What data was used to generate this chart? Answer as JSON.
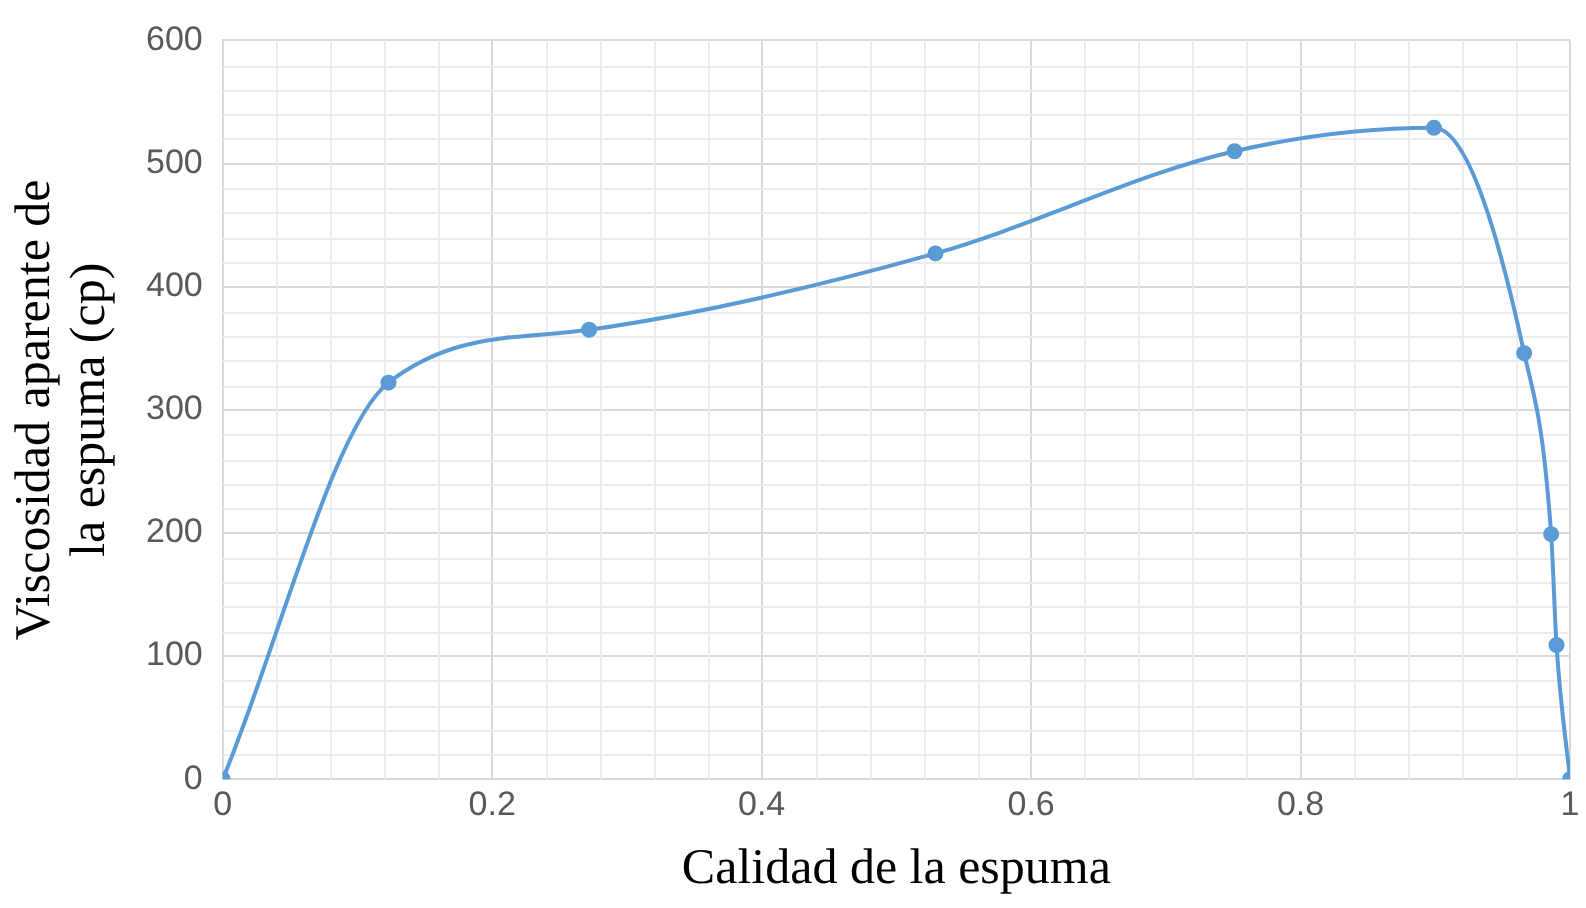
{
  "chart_data": {
    "type": "line",
    "xlabel": "Calidad de la espuma",
    "ylabel": "Viscosidad aparente de la espuma (cp)",
    "x": [
      0,
      0.123,
      0.272,
      0.529,
      0.751,
      0.899,
      0.966,
      0.986,
      0.99,
      1
    ],
    "series": [
      {
        "color": "#5b9bd5",
        "values": [
          0,
          322,
          365,
          427,
          510,
          529,
          346,
          199,
          109,
          0
        ]
      }
    ],
    "xlim": [
      0,
      1
    ],
    "xticks": [
      0,
      0.2,
      0.4,
      0.6,
      0.8,
      1
    ],
    "ylim": [
      0,
      600
    ],
    "yticks": [
      0,
      100,
      200,
      300,
      400,
      500,
      600
    ],
    "grid": true,
    "legend": false,
    "marker": "circle",
    "line_style": "solid"
  }
}
